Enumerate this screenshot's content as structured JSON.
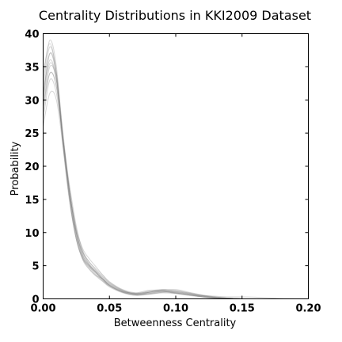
{
  "chart_data": {
    "type": "line",
    "title": "Centrality Distributions in KKI2009 Dataset",
    "xlabel": "Betweenness Centrality",
    "ylabel": "Probability",
    "xlim": [
      0.0,
      0.2
    ],
    "ylim": [
      0,
      40
    ],
    "xticks": [
      "0.00",
      "0.05",
      "0.10",
      "0.15",
      "0.20"
    ],
    "yticks": [
      "0",
      "5",
      "10",
      "15",
      "20",
      "25",
      "30",
      "35",
      "40"
    ],
    "xtick_values": [
      0.0,
      0.05,
      0.1,
      0.15,
      0.2
    ],
    "ytick_values": [
      0,
      5,
      10,
      15,
      20,
      25,
      30,
      35,
      40
    ],
    "grid": false,
    "line_color": "#808080",
    "series": [
      {
        "x": [
          0.0,
          0.005,
          0.01,
          0.015,
          0.02,
          0.025,
          0.03,
          0.035,
          0.04,
          0.045,
          0.05,
          0.06,
          0.07,
          0.08,
          0.09,
          0.1,
          0.11,
          0.12,
          0.13,
          0.14,
          0.15
        ],
        "values": [
          33,
          39,
          35,
          24,
          15,
          9,
          6,
          4.5,
          3.5,
          3,
          2,
          1,
          0.6,
          1,
          1.3,
          1,
          0.7,
          0.3,
          0.1,
          0.05,
          0
        ]
      },
      {
        "x": [
          0.0,
          0.005,
          0.01,
          0.015,
          0.02,
          0.025,
          0.03,
          0.035,
          0.04,
          0.045,
          0.05,
          0.06,
          0.07,
          0.08,
          0.09,
          0.1,
          0.11,
          0.12,
          0.13,
          0.14,
          0.15
        ],
        "values": [
          30,
          37,
          34,
          25,
          16,
          10,
          6.5,
          5,
          4,
          3,
          2.2,
          1.2,
          0.8,
          1.2,
          1.4,
          1.1,
          0.8,
          0.4,
          0.2,
          0.1,
          0
        ]
      },
      {
        "x": [
          0.0,
          0.005,
          0.01,
          0.015,
          0.02,
          0.025,
          0.03,
          0.035,
          0.04,
          0.045,
          0.05,
          0.06,
          0.07,
          0.08,
          0.09,
          0.1,
          0.11,
          0.12,
          0.13,
          0.14,
          0.15
        ],
        "values": [
          29,
          35,
          33,
          24,
          16,
          10,
          7,
          5.5,
          4.5,
          3.5,
          2.5,
          1.3,
          0.7,
          0.8,
          1,
          0.9,
          0.6,
          0.3,
          0.1,
          0.05,
          0
        ]
      },
      {
        "x": [
          0.0,
          0.005,
          0.01,
          0.015,
          0.02,
          0.025,
          0.03,
          0.035,
          0.04,
          0.045,
          0.05,
          0.06,
          0.07,
          0.08,
          0.09,
          0.1,
          0.11,
          0.12,
          0.13,
          0.14,
          0.15
        ],
        "values": [
          31,
          36,
          33,
          23,
          15,
          9.5,
          6.2,
          4.8,
          3.8,
          2.8,
          2,
          1.1,
          0.9,
          1.3,
          1.2,
          0.8,
          0.5,
          0.3,
          0.2,
          0.1,
          0
        ]
      },
      {
        "x": [
          0.0,
          0.005,
          0.01,
          0.015,
          0.02,
          0.025,
          0.03,
          0.035,
          0.04,
          0.045,
          0.05,
          0.06,
          0.07,
          0.08,
          0.09,
          0.1,
          0.11,
          0.12,
          0.13,
          0.14,
          0.15
        ],
        "values": [
          28,
          34,
          32,
          24,
          16.5,
          10.5,
          7,
          5.2,
          4.2,
          3.3,
          2.4,
          1.3,
          0.8,
          1,
          1.3,
          1.2,
          0.9,
          0.5,
          0.2,
          0.1,
          0
        ]
      },
      {
        "x": [
          0.0,
          0.005,
          0.01,
          0.015,
          0.02,
          0.025,
          0.03,
          0.035,
          0.04,
          0.045,
          0.05,
          0.06,
          0.07,
          0.08,
          0.09,
          0.1,
          0.11,
          0.12,
          0.13,
          0.14,
          0.15
        ],
        "values": [
          32,
          38,
          34,
          24,
          15,
          9,
          6,
          4.7,
          3.6,
          2.7,
          1.9,
          1,
          0.6,
          0.9,
          1.1,
          1,
          0.7,
          0.4,
          0.15,
          0.05,
          0
        ]
      },
      {
        "x": [
          0.0,
          0.005,
          0.01,
          0.015,
          0.02,
          0.025,
          0.03,
          0.035,
          0.04,
          0.045,
          0.05,
          0.06,
          0.07,
          0.08,
          0.09,
          0.1,
          0.11,
          0.12,
          0.13,
          0.14,
          0.15
        ],
        "values": [
          27,
          33,
          31,
          24,
          17,
          11,
          7.2,
          5.5,
          4.3,
          3.2,
          2.3,
          1.2,
          0.7,
          0.8,
          1.2,
          1.4,
          1,
          0.6,
          0.3,
          0.1,
          0
        ]
      },
      {
        "x": [
          0.0,
          0.005,
          0.01,
          0.015,
          0.02,
          0.025,
          0.03,
          0.035,
          0.04,
          0.045,
          0.05,
          0.06,
          0.07,
          0.08,
          0.09,
          0.1,
          0.11,
          0.12,
          0.13,
          0.14,
          0.15
        ],
        "values": [
          26,
          31,
          30,
          23,
          16,
          10.5,
          7.5,
          6,
          4.8,
          3.6,
          2.6,
          1.4,
          0.9,
          1,
          1.1,
          0.9,
          0.6,
          0.4,
          0.2,
          0.1,
          0
        ]
      },
      {
        "x": [
          0.0,
          0.005,
          0.01,
          0.015,
          0.02,
          0.025,
          0.03,
          0.035,
          0.04,
          0.045,
          0.05,
          0.06,
          0.07,
          0.08,
          0.09,
          0.1,
          0.11,
          0.12,
          0.13,
          0.14,
          0.15
        ],
        "values": [
          34,
          38.5,
          34,
          23,
          14.5,
          9,
          5.8,
          4.4,
          3.4,
          2.6,
          1.8,
          0.9,
          0.5,
          0.7,
          1,
          1.1,
          0.8,
          0.5,
          0.3,
          0.1,
          0
        ]
      },
      {
        "x": [
          0.0,
          0.005,
          0.01,
          0.015,
          0.02,
          0.025,
          0.03,
          0.035,
          0.04,
          0.045,
          0.05,
          0.06,
          0.07,
          0.08,
          0.09,
          0.1,
          0.11,
          0.12,
          0.13,
          0.14,
          0.15
        ],
        "values": [
          30,
          35.5,
          33,
          24.5,
          16,
          10,
          6.8,
          5.1,
          4,
          3,
          2.1,
          1.1,
          0.8,
          1.1,
          1.2,
          0.9,
          0.6,
          0.3,
          0.15,
          0.05,
          0
        ]
      },
      {
        "x": [
          0.0,
          0.005,
          0.01,
          0.015,
          0.02,
          0.025,
          0.03,
          0.035,
          0.04,
          0.045,
          0.05,
          0.06,
          0.07,
          0.08,
          0.09,
          0.1,
          0.11,
          0.12,
          0.13,
          0.14,
          0.15,
          0.16,
          0.17,
          0.18,
          0.19
        ],
        "values": [
          29,
          34,
          32,
          24,
          16,
          10,
          6.5,
          5,
          4,
          3,
          2.1,
          1.1,
          0.6,
          0.7,
          0.9,
          0.8,
          0.6,
          0.5,
          0.4,
          0.3,
          0.3,
          0.25,
          0.15,
          0.05,
          0
        ]
      },
      {
        "x": [
          0.0,
          0.005,
          0.01,
          0.015,
          0.02,
          0.025,
          0.03,
          0.035,
          0.04,
          0.045,
          0.05,
          0.06,
          0.07,
          0.08,
          0.09,
          0.1,
          0.11,
          0.12,
          0.13,
          0.14,
          0.15
        ],
        "values": [
          31,
          37,
          33.5,
          23.5,
          15.5,
          9.5,
          6.2,
          4.9,
          3.9,
          2.9,
          2,
          1,
          0.7,
          1,
          1.4,
          1.3,
          0.9,
          0.5,
          0.2,
          0.1,
          0
        ]
      }
    ]
  }
}
